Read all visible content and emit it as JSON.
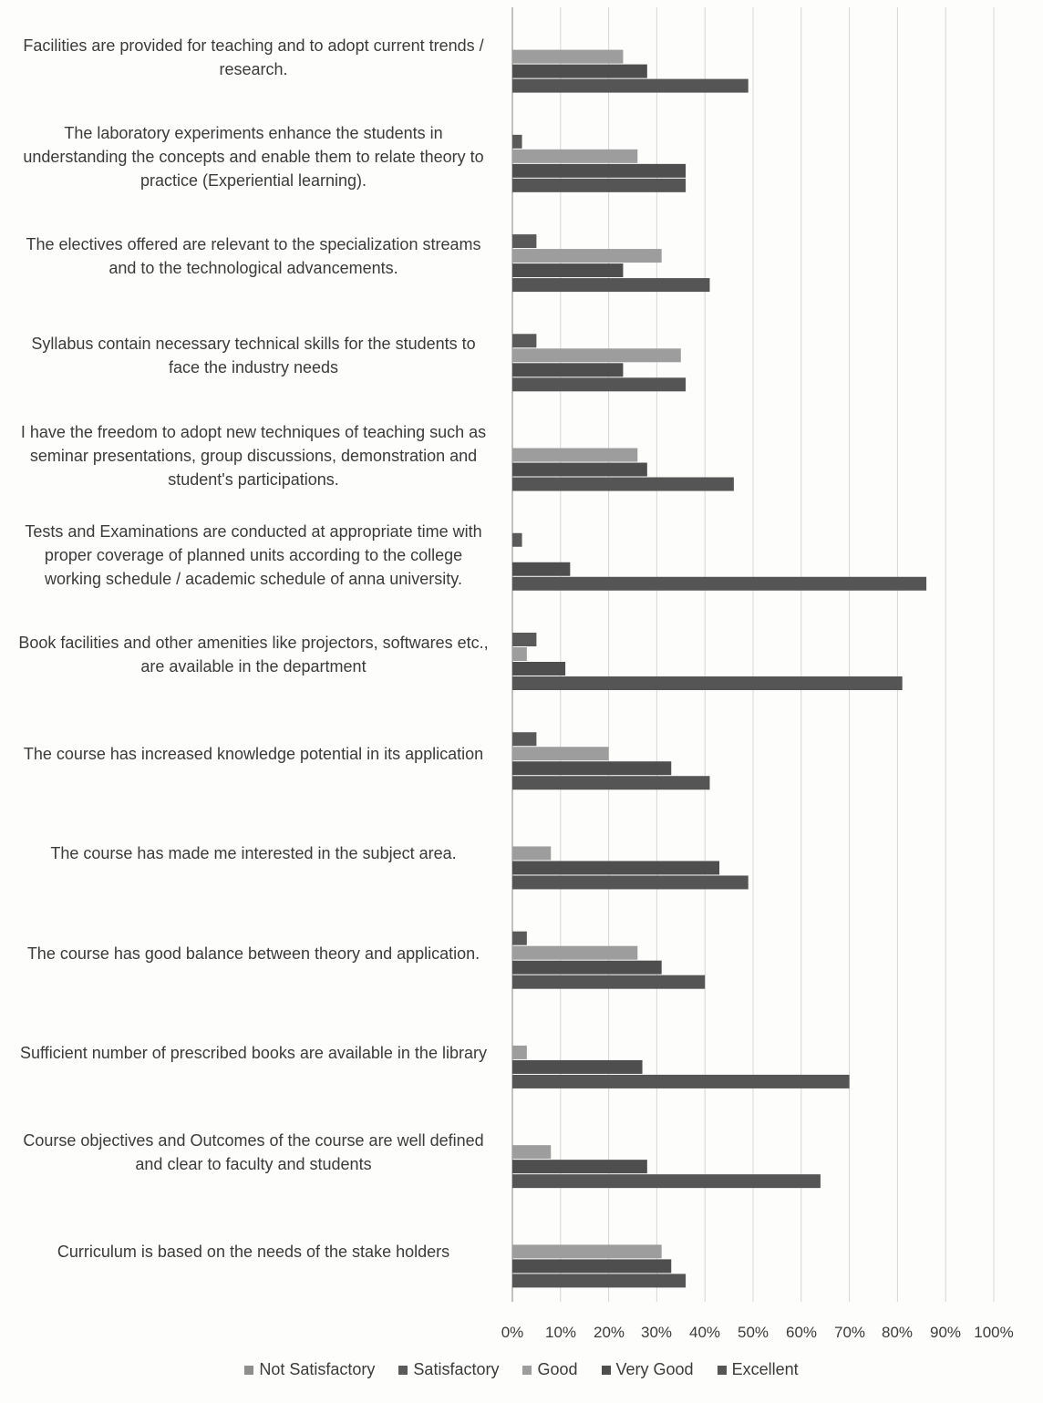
{
  "chart_data": {
    "type": "bar",
    "orientation": "horizontal",
    "title": "",
    "xlabel": "",
    "ylabel": "",
    "xlim": [
      0,
      100
    ],
    "x_ticks": [
      "0%",
      "10%",
      "20%",
      "30%",
      "40%",
      "50%",
      "60%",
      "70%",
      "80%",
      "90%",
      "100%"
    ],
    "grid": true,
    "legend_position": "bottom",
    "categories": [
      "Facilities are provided for teaching and to adopt current trends / research.",
      "The laboratory experiments enhance the students in understanding the concepts and enable them to relate theory to practice (Experiential learning).",
      "The electives offered are relevant to the specialization streams and to the technological advancements.",
      "Syllabus contain necessary technical skills for the students to face the industry needs",
      "I have the freedom to adopt new techniques of teaching such as seminar presentations, group discussions, demonstration and student's participations.",
      "Tests and Examinations are conducted at appropriate time with proper coverage of planned units according to the college working schedule / academic schedule of anna university.",
      "Book facilities and other amenities like projectors, softwares etc., are available in the department",
      "The course has increased knowledge potential in its application",
      "The course has made me interested in the subject area.",
      "The course has good balance between theory and application.",
      "Sufficient number of prescribed books are available in the library",
      "Course objectives and Outcomes of the course are well defined and clear to faculty and students",
      "Curriculum is based on the needs of the stake holders"
    ],
    "series": [
      {
        "name": "Not Satisfactory",
        "color": "#8e8e8e",
        "values": [
          0,
          0,
          0,
          0,
          0,
          0,
          0,
          0,
          0,
          0,
          0,
          0,
          0
        ]
      },
      {
        "name": "Satisfactory",
        "color": "#5a5a5a",
        "values": [
          0,
          2,
          5,
          5,
          0,
          2,
          5,
          5,
          0,
          3,
          0,
          0,
          0
        ]
      },
      {
        "name": "Good",
        "color": "#9d9d9d",
        "values": [
          23,
          26,
          31,
          35,
          26,
          0,
          3,
          20,
          8,
          26,
          3,
          8,
          31
        ]
      },
      {
        "name": "Very Good",
        "color": "#4e4e4e",
        "values": [
          28,
          36,
          23,
          23,
          28,
          12,
          11,
          33,
          43,
          31,
          27,
          28,
          33
        ]
      },
      {
        "name": "Excellent",
        "color": "#555555",
        "values": [
          49,
          36,
          41,
          36,
          46,
          86,
          81,
          41,
          49,
          40,
          70,
          64,
          36
        ]
      }
    ]
  },
  "legend": {
    "items": [
      {
        "label": "Not Satisfactory",
        "color": "#8e8e8e"
      },
      {
        "label": "Satisfactory",
        "color": "#5a5a5a"
      },
      {
        "label": "Good",
        "color": "#9d9d9d"
      },
      {
        "label": "Very Good",
        "color": "#4e4e4e"
      },
      {
        "label": "Excellent",
        "color": "#555555"
      }
    ]
  }
}
